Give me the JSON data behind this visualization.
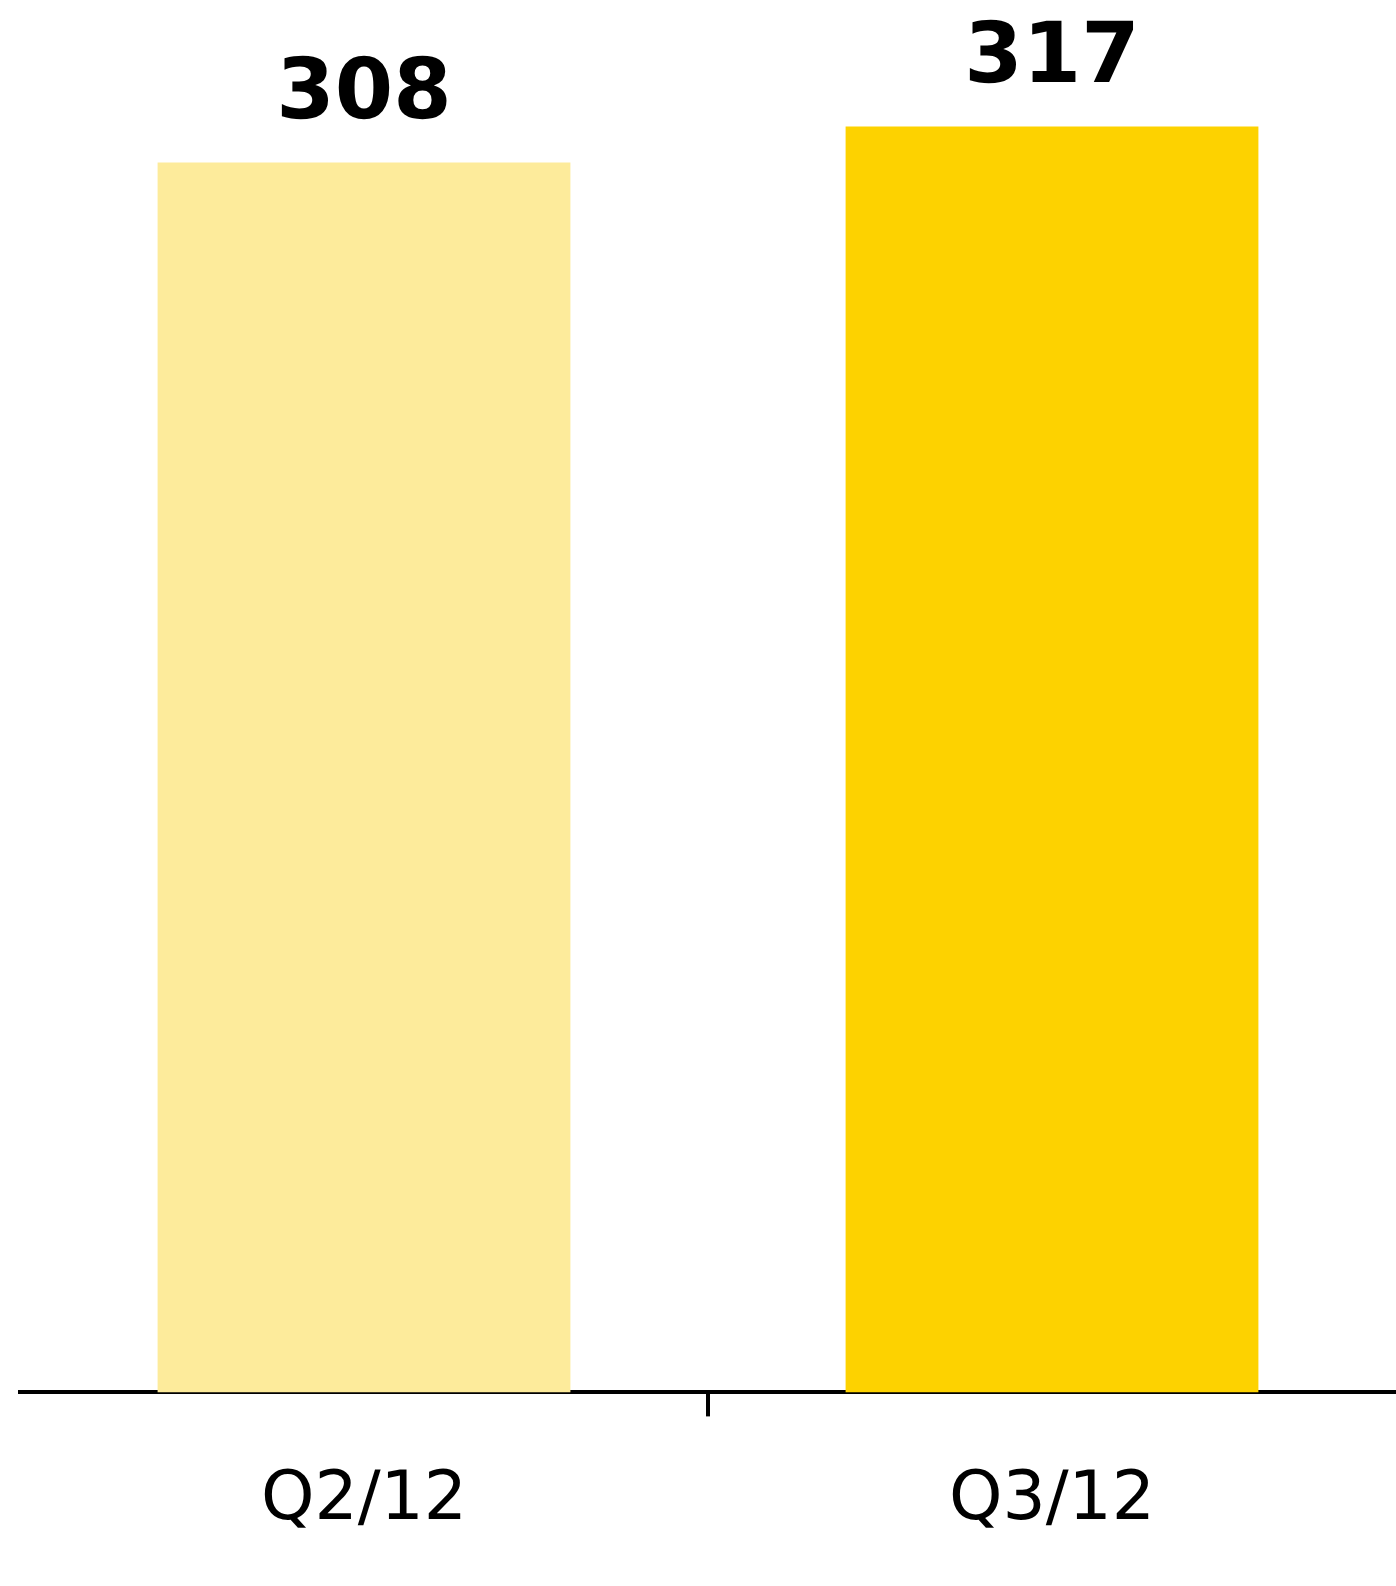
{
  "chart_data": {
    "type": "bar",
    "categories": [
      "Q2/12",
      "Q3/12"
    ],
    "values": [
      308,
      317
    ],
    "colors": [
      "#fdeb9b",
      "#fdd200"
    ],
    "data_labels": true,
    "grid": false,
    "legend": false
  }
}
